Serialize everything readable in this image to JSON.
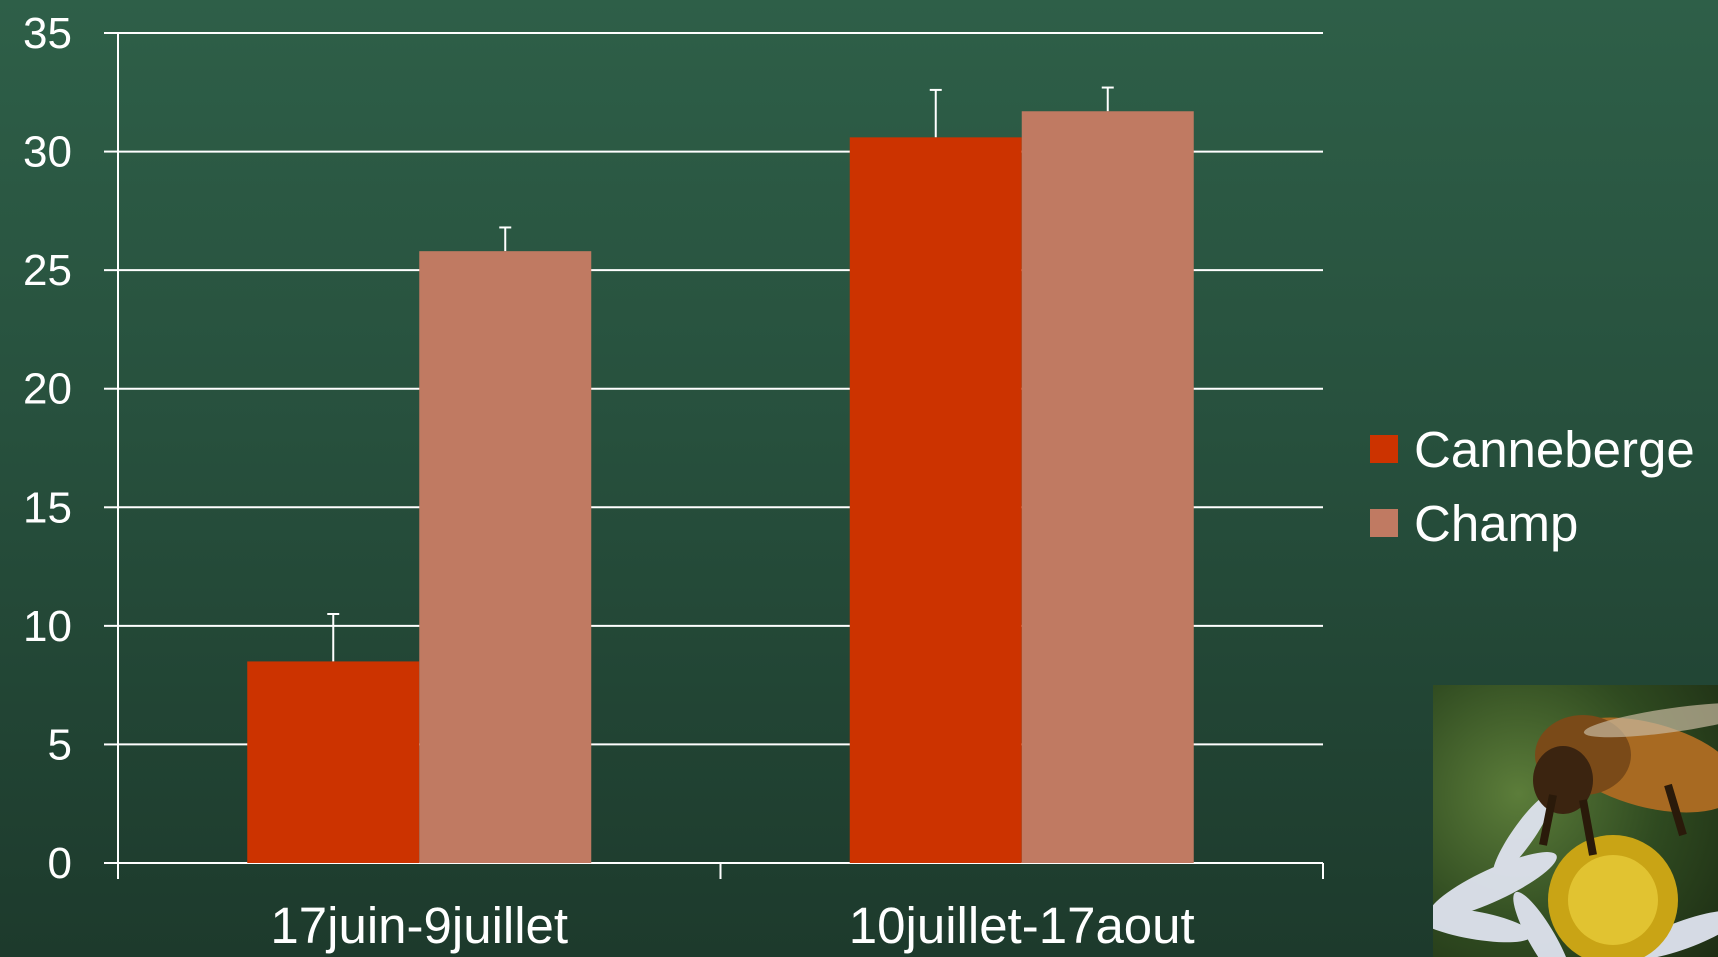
{
  "chart_data": {
    "type": "bar",
    "categories": [
      "17juin-9juillet",
      "10juillet-17aout"
    ],
    "series": [
      {
        "name": "Canneberge",
        "color": "#cc3300",
        "values": [
          8.5,
          30.6
        ],
        "error": [
          2.0,
          2.0
        ]
      },
      {
        "name": "Champ",
        "color": "#c07a62",
        "values": [
          25.8,
          31.7
        ],
        "error": [
          1.0,
          1.0
        ]
      }
    ],
    "ylim": [
      0,
      35
    ],
    "yticks": [
      "0",
      "5",
      "10",
      "15",
      "20",
      "25",
      "30",
      "35"
    ],
    "xlabel": "",
    "ylabel": "",
    "grid": true,
    "legend_position": "right"
  },
  "photo": {
    "icon": "bee-on-flower-photo"
  }
}
